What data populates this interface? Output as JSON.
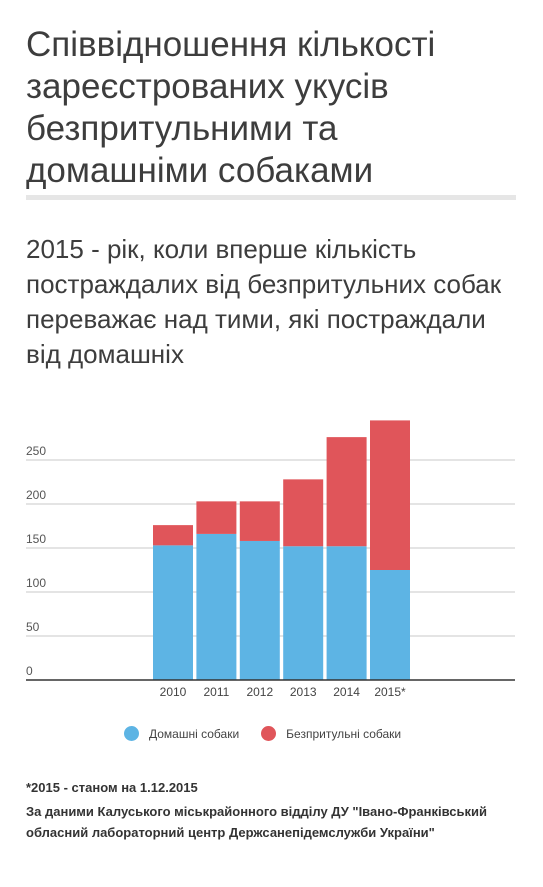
{
  "header": {
    "title": "Співвідношення кількості зареєстрованих укусів безпритульними та домашніми собаками",
    "subtitle": "2015 - рік, коли вперше кількість постраждалих від безпритульних собак переважає над тими, які постраждали від домашніх"
  },
  "chart_data": {
    "type": "bar",
    "stacked": true,
    "categories": [
      "2010",
      "2011",
      "2012",
      "2013",
      "2014",
      "2015*"
    ],
    "series": [
      {
        "name": "Домашні собаки",
        "color": "#5db4e4",
        "values": [
          153,
          166,
          158,
          152,
          152,
          125
        ]
      },
      {
        "name": "Безпритульні собаки",
        "color": "#e0555a",
        "values": [
          23,
          37,
          45,
          76,
          124,
          170
        ]
      }
    ],
    "yticks": [
      0,
      50,
      100,
      150,
      200,
      250
    ],
    "ylim": [
      0,
      300
    ],
    "grid": true,
    "legend_position": "bottom"
  },
  "legend": {
    "items": [
      {
        "label": "Домашні собаки",
        "color": "#5db4e4"
      },
      {
        "label": "Безпритульні собаки",
        "color": "#e0555a"
      }
    ]
  },
  "footer": {
    "note": "*2015 - станом на 1.12.2015",
    "source": "За даними Калуського міськрайонного відділу ДУ \"Івано-Франківський обласний лабораторний центр Держсанепідемслужби України\""
  }
}
